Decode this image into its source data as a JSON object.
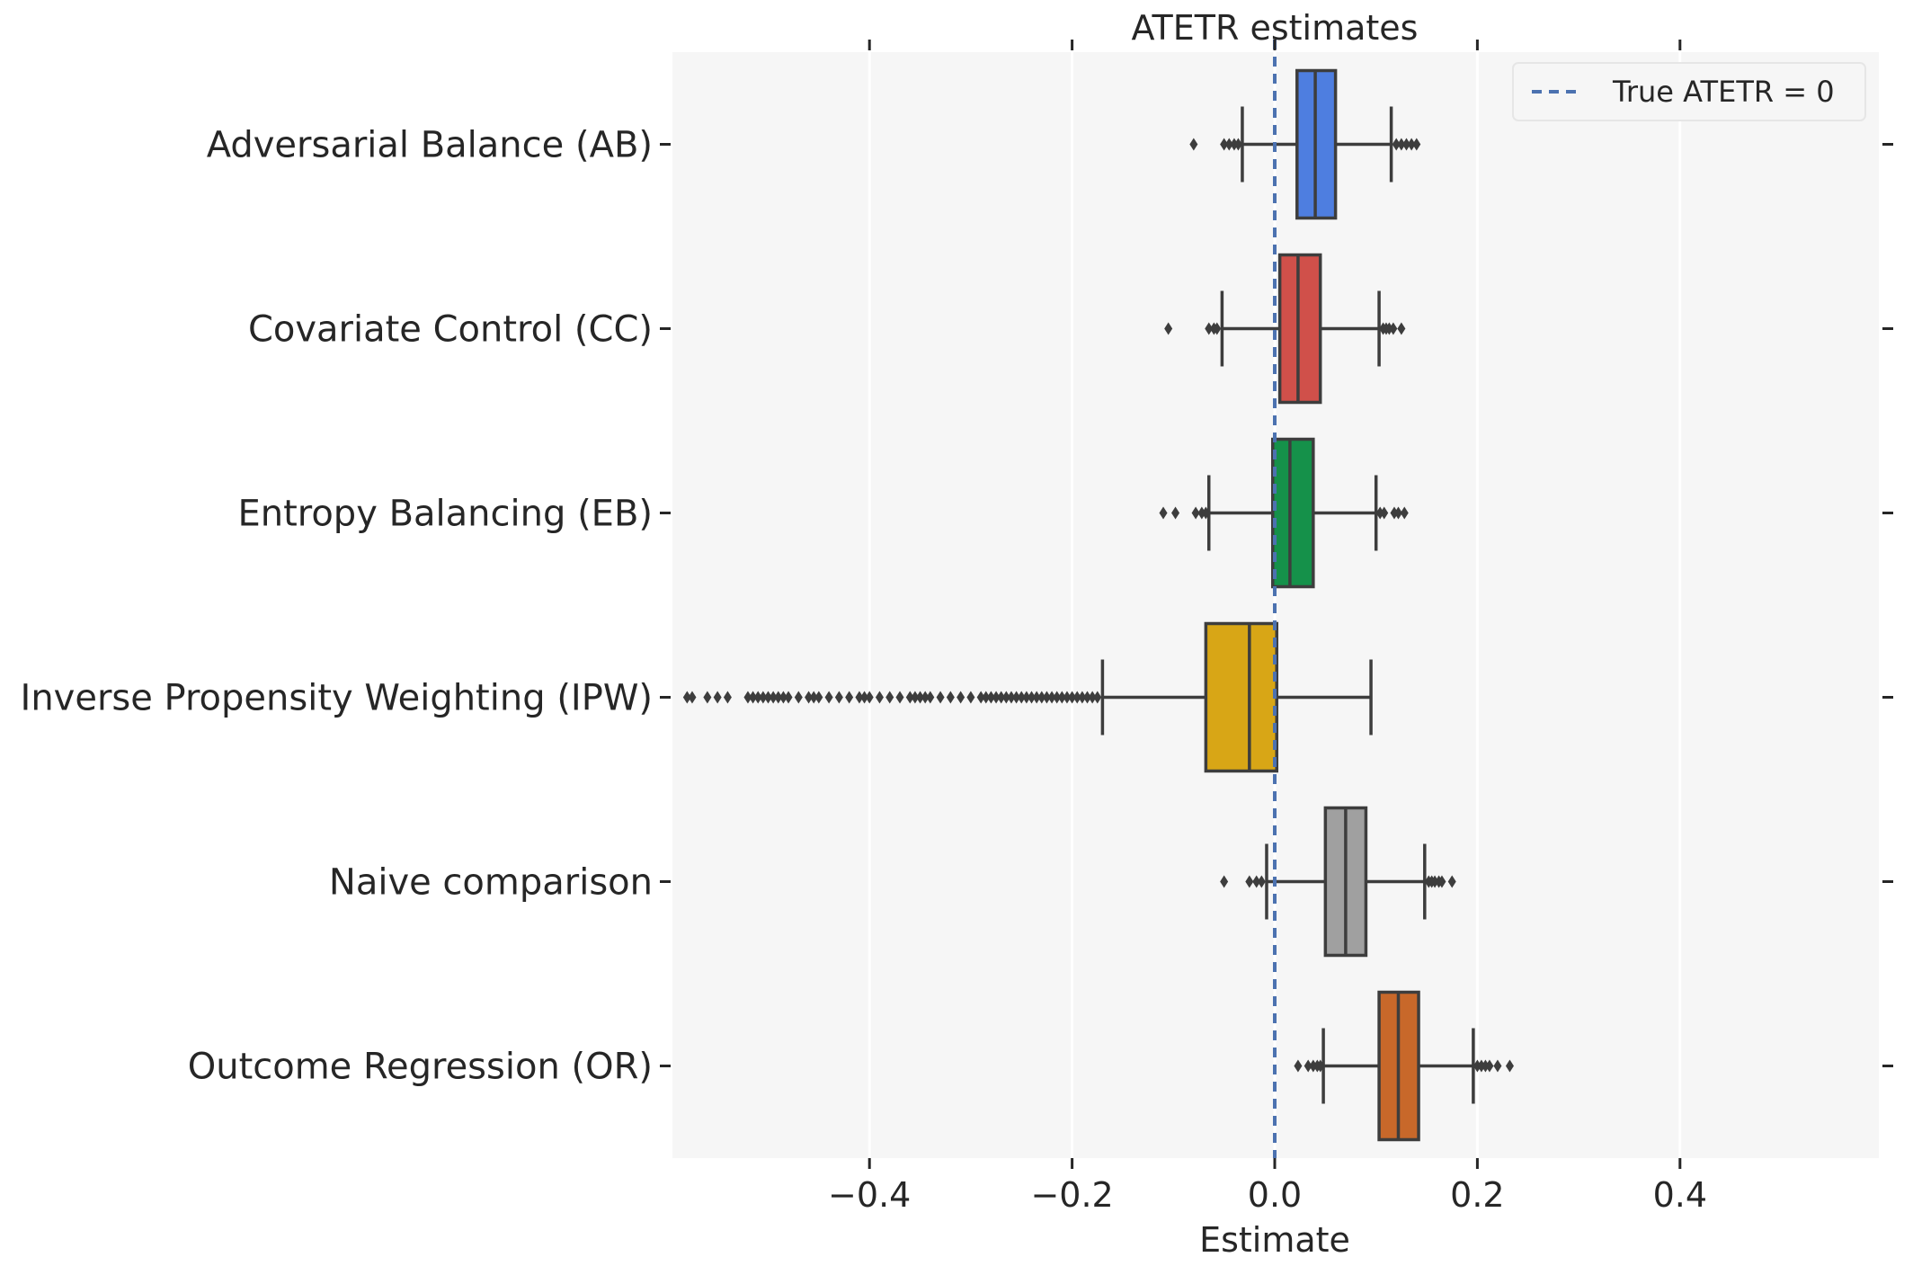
{
  "chart_data": {
    "type": "boxplot",
    "orientation": "horizontal",
    "title": "ATETR estimates",
    "xlabel": "Estimate",
    "ylabel": "",
    "xlim": [
      -0.6,
      0.6
    ],
    "xticks": [
      -0.4,
      -0.2,
      0.0,
      0.2,
      0.4
    ],
    "xtick_labels": [
      "−0.4",
      "−0.2",
      "0.0",
      "0.2",
      "0.4"
    ],
    "grid": true,
    "legend": {
      "placement": "top-right",
      "entries": [
        {
          "label": "True ATETR = 0",
          "style": "dashed",
          "color": "#4C72B0"
        }
      ]
    },
    "reference_line": {
      "x": 0.0,
      "color": "#4C72B0",
      "style": "dashed"
    },
    "categories": [
      "Adversarial Balance (AB)",
      "Covariate Control (CC)",
      "Entropy Balancing (EB)",
      "Inverse Propensity Weighting (IPW)",
      "Naive comparison",
      "Outcome Regression (OR)"
    ],
    "series": [
      {
        "name": "Adversarial Balance (AB)",
        "color": "#4e7ee0",
        "whisker_low": -0.032,
        "q1": 0.022,
        "median": 0.04,
        "q3": 0.06,
        "whisker_high": 0.115,
        "outliers": [
          -0.08,
          -0.05,
          -0.045,
          -0.04,
          -0.036,
          0.12,
          0.125,
          0.13,
          0.135,
          0.14
        ]
      },
      {
        "name": "Covariate Control (CC)",
        "color": "#d0504a",
        "whisker_low": -0.052,
        "q1": 0.005,
        "median": 0.023,
        "q3": 0.045,
        "whisker_high": 0.103,
        "outliers": [
          -0.105,
          -0.065,
          -0.06,
          -0.057,
          0.107,
          0.11,
          0.113,
          0.117,
          0.125
        ]
      },
      {
        "name": "Entropy Balancing (EB)",
        "color": "#15914a",
        "whisker_low": -0.065,
        "q1": -0.002,
        "median": 0.015,
        "q3": 0.038,
        "whisker_high": 0.1,
        "outliers": [
          -0.11,
          -0.098,
          -0.078,
          -0.072,
          -0.068,
          0.104,
          0.108,
          0.118,
          0.122,
          0.128
        ]
      },
      {
        "name": "Inverse Propensity Weighting (IPW)",
        "color": "#d8a616",
        "whisker_low": -0.17,
        "q1": -0.068,
        "median": -0.025,
        "q3": 0.002,
        "whisker_high": 0.095,
        "outliers": [
          -0.58,
          -0.575,
          -0.56,
          -0.55,
          -0.54,
          -0.52,
          -0.515,
          -0.51,
          -0.505,
          -0.5,
          -0.495,
          -0.49,
          -0.485,
          -0.48,
          -0.47,
          -0.46,
          -0.455,
          -0.45,
          -0.44,
          -0.43,
          -0.42,
          -0.41,
          -0.405,
          -0.4,
          -0.39,
          -0.38,
          -0.37,
          -0.36,
          -0.355,
          -0.35,
          -0.345,
          -0.34,
          -0.33,
          -0.32,
          -0.31,
          -0.3,
          -0.29,
          -0.285,
          -0.28,
          -0.275,
          -0.27,
          -0.265,
          -0.26,
          -0.255,
          -0.25,
          -0.245,
          -0.24,
          -0.235,
          -0.23,
          -0.225,
          -0.22,
          -0.215,
          -0.21,
          -0.205,
          -0.2,
          -0.195,
          -0.19,
          -0.185,
          -0.18,
          -0.175
        ]
      },
      {
        "name": "Naive comparison",
        "color": "#a0a0a0",
        "whisker_low": -0.008,
        "q1": 0.05,
        "median": 0.07,
        "q3": 0.09,
        "whisker_high": 0.148,
        "outliers": [
          -0.05,
          -0.025,
          -0.018,
          -0.013,
          0.152,
          0.155,
          0.158,
          0.162,
          0.165,
          0.175
        ]
      },
      {
        "name": "Outcome Regression (OR)",
        "color": "#c8682a",
        "whisker_low": 0.048,
        "q1": 0.103,
        "median": 0.122,
        "q3": 0.142,
        "whisker_high": 0.196,
        "outliers": [
          0.023,
          0.033,
          0.038,
          0.042,
          0.045,
          0.2,
          0.204,
          0.208,
          0.212,
          0.22,
          0.232
        ]
      }
    ],
    "colors": {
      "background": "#f6f6f6",
      "grid": "#ffffff",
      "box_edge": "#3d3d3d",
      "text": "#262626"
    }
  }
}
